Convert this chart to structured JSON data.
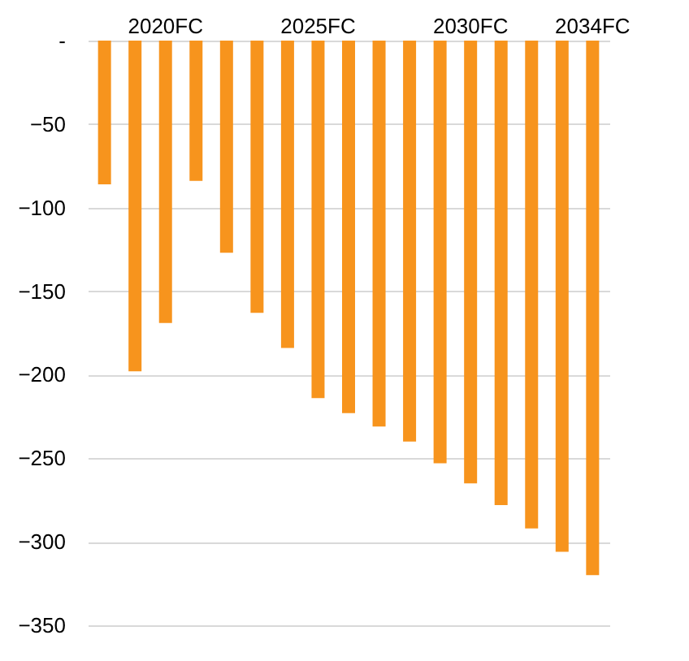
{
  "chart_data": {
    "type": "bar",
    "categories": [
      null,
      null,
      "2020FC",
      null,
      null,
      null,
      null,
      "2025FC",
      null,
      null,
      null,
      null,
      "2030FC",
      null,
      null,
      null,
      "2034FC"
    ],
    "values": [
      -86,
      -198,
      -169,
      -84,
      -127,
      -163,
      -184,
      -214,
      -223,
      -231,
      -240,
      -253,
      -265,
      -278,
      -292,
      -306,
      -320
    ],
    "color": "#f7941d",
    "ylim": [
      -350,
      0
    ],
    "yticks": [
      {
        "value": 0,
        "label": "-"
      },
      -50,
      -100,
      -150,
      -200,
      -250,
      -300,
      -350
    ],
    "grid": "y"
  }
}
